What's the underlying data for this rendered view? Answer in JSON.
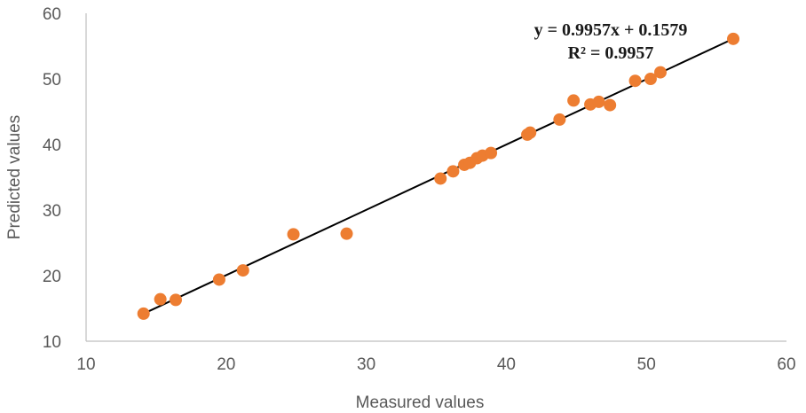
{
  "chart_data": {
    "type": "scatter",
    "title": "",
    "xlabel": "Measured values",
    "ylabel": "Predicted values",
    "xlim": [
      10,
      60
    ],
    "ylim": [
      10,
      60
    ],
    "xticks": [
      "10",
      "20",
      "30",
      "40",
      "50",
      "60"
    ],
    "yticks": [
      "10",
      "20",
      "30",
      "40",
      "50",
      "60"
    ],
    "grid": false,
    "legend": "none",
    "series": [
      {
        "color": "#ED7D31",
        "points": [
          [
            14.1,
            14.2
          ],
          [
            15.3,
            16.4
          ],
          [
            16.4,
            16.3
          ],
          [
            19.5,
            19.4
          ],
          [
            21.2,
            20.8
          ],
          [
            24.8,
            26.3
          ],
          [
            28.6,
            26.4
          ],
          [
            35.3,
            34.8
          ],
          [
            36.2,
            35.9
          ],
          [
            37.0,
            36.9
          ],
          [
            37.4,
            37.2
          ],
          [
            37.9,
            37.9
          ],
          [
            38.3,
            38.3
          ],
          [
            38.9,
            38.7
          ],
          [
            41.5,
            41.5
          ],
          [
            41.7,
            41.8
          ],
          [
            43.8,
            43.8
          ],
          [
            44.8,
            46.7
          ],
          [
            46.0,
            46.1
          ],
          [
            46.6,
            46.5
          ],
          [
            47.4,
            46.0
          ],
          [
            49.2,
            49.7
          ],
          [
            50.3,
            50.0
          ],
          [
            51.0,
            51.0
          ],
          [
            56.2,
            56.1
          ]
        ]
      }
    ],
    "trendline": {
      "color": "#000000",
      "slope": 0.9957,
      "intercept": 0.1579,
      "x_range": [
        14.1,
        56.2
      ],
      "equation": "y = 0.9957x + 0.1579",
      "r2": "R² = 0.9957"
    }
  }
}
